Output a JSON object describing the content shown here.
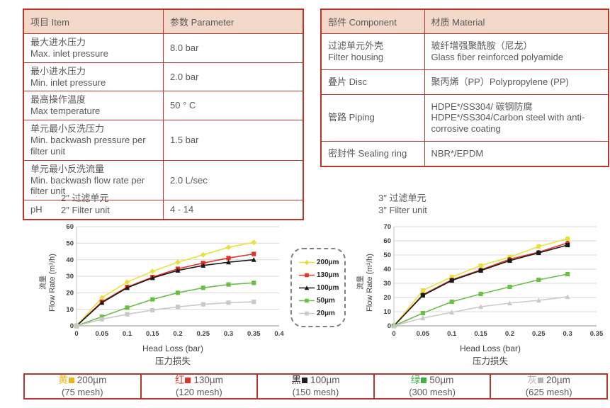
{
  "colors": {
    "table_border": "#b9362c",
    "table_header_bg": "#f3d8ca",
    "body_text": "#595959",
    "axis_text": "#404040",
    "gridline": "#d9d9d9",
    "axis_line": "#a6a6a6"
  },
  "spec_table": {
    "headers": [
      "项目 Item",
      "参数 Parameter"
    ],
    "rows": [
      {
        "cells": [
          [
            "最大进水压力",
            "Max. inlet pressure"
          ],
          [
            "8.0 bar"
          ]
        ]
      },
      {
        "cells": [
          [
            "最小进水压力",
            "Min. inlet pressure"
          ],
          [
            "2.0 bar"
          ]
        ]
      },
      {
        "cells": [
          [
            "最高操作温度",
            "Max temperature"
          ],
          [
            "50 ° C"
          ]
        ]
      },
      {
        "cells": [
          [
            "单元最小反洗压力",
            "Min. backwash pressure per filter unit"
          ],
          [
            "1.5 bar"
          ]
        ]
      },
      {
        "cells": [
          [
            "单元最小反洗流量",
            "Min. backwash flow rate per filter unit"
          ],
          [
            "2.0 L/sec"
          ]
        ]
      },
      {
        "cells": [
          [
            "pH"
          ],
          [
            "4 - 14"
          ]
        ]
      }
    ]
  },
  "material_table": {
    "headers": [
      "部件 Component",
      "材质 Material"
    ],
    "rows": [
      {
        "cells": [
          [
            "过滤单元外壳",
            "Filter housing"
          ],
          [
            "玻纤增强聚酰胺（尼龙）",
            "Glass fiber reinforced polyamide"
          ]
        ]
      },
      {
        "cells": [
          [
            "叠片 Disc"
          ],
          [
            "聚丙烯（PP）Polypropylene (PP)"
          ]
        ]
      },
      {
        "cells": [
          [
            "管路 Piping"
          ],
          [
            "HDPE*/SS304/ 碳钢防腐",
            "HDPE*/SS304/Carbon steel with anti-corrosive coating"
          ]
        ]
      },
      {
        "cells": [
          [
            "密封件 Sealing ring"
          ],
          [
            "NBR*/EPDM"
          ]
        ]
      }
    ]
  },
  "chart_data": [
    {
      "type": "line",
      "title_zh": "2″ 过滤单元",
      "title_en": "2″ Filter unit",
      "ylabel_zh": "流量",
      "ylabel": "Flow Rate (m³/h)",
      "xlabel": "Head Loss (bar)",
      "xlabel_zh": "压力损失",
      "xlim": [
        0,
        0.4
      ],
      "ylim": [
        0,
        60
      ],
      "xticks": [
        0,
        0.05,
        0.1,
        0.15,
        0.2,
        0.25,
        0.3,
        0.35,
        0.4
      ],
      "yticks": [
        0,
        10,
        20,
        30,
        40,
        50,
        60
      ],
      "grid": "horizontal",
      "x": [
        0,
        0.05,
        0.1,
        0.15,
        0.2,
        0.25,
        0.3,
        0.35
      ],
      "series": [
        {
          "name": "200µm",
          "color": "#e7e23b",
          "marker": "diamond",
          "values": [
            0,
            17,
            26.5,
            33,
            38.5,
            43,
            47.5,
            50.5
          ]
        },
        {
          "name": "130µm",
          "color": "#e0342b",
          "marker": "square",
          "values": [
            0,
            14.5,
            23.5,
            29.5,
            34.5,
            38,
            41,
            43.5
          ]
        },
        {
          "name": "100µm",
          "color": "#1a1a1a",
          "marker": "triangle",
          "values": [
            0,
            14,
            23,
            29,
            33.5,
            36.5,
            38.5,
            40
          ]
        },
        {
          "name": "50µm",
          "color": "#6abf47",
          "marker": "square",
          "values": [
            0,
            5.5,
            11,
            16,
            20,
            23,
            25,
            26
          ]
        },
        {
          "name": "20µm",
          "color": "#c8cac7",
          "marker": "square",
          "values": [
            0,
            4,
            7,
            9.5,
            11.5,
            13,
            14,
            14.5
          ]
        }
      ]
    },
    {
      "type": "line",
      "title_zh": "3″ 过滤单元",
      "title_en": "3″ Filter unit",
      "ylabel_zh": "流量",
      "ylabel": "Flow Rate (m³/h)",
      "xlabel": "Head Loss (bar)",
      "xlabel_zh": "压力损失",
      "xlim": [
        0,
        0.35
      ],
      "ylim": [
        0,
        70
      ],
      "xticks": [
        0,
        0.05,
        0.1,
        0.15,
        0.2,
        0.25,
        0.3,
        0.35
      ],
      "yticks": [
        0,
        10,
        20,
        30,
        40,
        50,
        60,
        70
      ],
      "grid": "horizontal",
      "x": [
        0,
        0.05,
        0.1,
        0.15,
        0.2,
        0.25,
        0.3
      ],
      "series": [
        {
          "name": "200µm",
          "color": "#e7e23b",
          "marker": "square",
          "values": [
            0,
            25,
            34.5,
            42.5,
            48.5,
            56,
            61.5
          ]
        },
        {
          "name": "130µm",
          "color": "#e0342b",
          "marker": "circle",
          "values": [
            0,
            22,
            32.5,
            39.5,
            47,
            52,
            58.5
          ]
        },
        {
          "name": "100µm",
          "color": "#1a1a1a",
          "marker": "square",
          "values": [
            0,
            21.5,
            32,
            39,
            46,
            51.5,
            57
          ]
        },
        {
          "name": "50µm",
          "color": "#6abf47",
          "marker": "square",
          "values": [
            0,
            9,
            17,
            22.5,
            27.5,
            32.5,
            36.5
          ]
        },
        {
          "name": "20µm",
          "color": "#c8cac7",
          "marker": "triangle",
          "values": [
            0,
            5.5,
            9.5,
            13.5,
            16,
            18,
            20.5
          ]
        }
      ]
    }
  ],
  "mid_legend": {
    "items": [
      {
        "label": "200µm",
        "color": "#e7e23b",
        "marker": "diamond"
      },
      {
        "label": "130µm",
        "color": "#e0342b",
        "marker": "square"
      },
      {
        "label": "100µm",
        "color": "#1a1a1a",
        "marker": "triangle"
      },
      {
        "label": "50µm",
        "color": "#6abf47",
        "marker": "square"
      },
      {
        "label": "20µm",
        "color": "#c8cac7",
        "marker": "square"
      }
    ]
  },
  "bottom_legend": {
    "items": [
      {
        "prefix": "黄",
        "color": "#eab514",
        "label": "200µm",
        "mesh": "(75 mesh)"
      },
      {
        "prefix": "红",
        "color": "#e0342b",
        "label": "130µm",
        "mesh": "(120 mesh)"
      },
      {
        "prefix": "黑",
        "color": "#1f1f1f",
        "label": "100µm",
        "mesh": "(150 mesh)"
      },
      {
        "prefix": "绿",
        "color": "#43b049",
        "label": "50µm",
        "mesh": "(300 mesh)"
      },
      {
        "prefix": "灰",
        "color": "#b3b3b3",
        "label": "20µm",
        "mesh": "(625 mesh)"
      }
    ]
  }
}
